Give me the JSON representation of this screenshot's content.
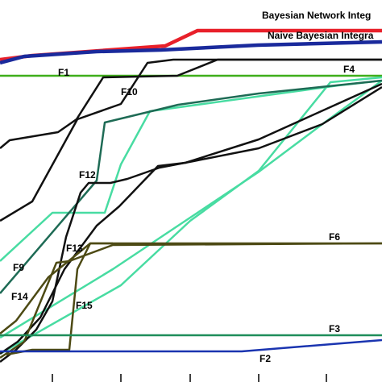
{
  "chart_data": {
    "type": "line",
    "title": "",
    "xlabel": "",
    "ylabel": "",
    "xlim": [
      0,
      474
    ],
    "ylim": [
      0,
      474
    ],
    "grid": false,
    "legend": "inline-labels",
    "x_ticks": [
      65,
      150,
      236,
      321,
      405
    ],
    "series": [
      {
        "name": "Bayesian Network Integ",
        "color": "#e8202a",
        "width": 4.5,
        "label_at": [
          325,
          451
        ],
        "points": [
          [
            0,
            400
          ],
          [
            40,
            405
          ],
          [
            205,
            417
          ],
          [
            245,
            436
          ],
          [
            474,
            436
          ]
        ]
      },
      {
        "name": "Naive Bayesian Integra",
        "color": "#1a2a9c",
        "width": 4.5,
        "label_at": [
          332,
          426
        ],
        "points": [
          [
            0,
            396
          ],
          [
            30,
            404
          ],
          [
            120,
            410
          ],
          [
            200,
            412
          ],
          [
            320,
            418
          ],
          [
            474,
            422
          ]
        ]
      },
      {
        "name": "F1",
        "color": "#3fae1a",
        "width": 2.5,
        "label_at": [
          72,
          380
        ],
        "points": [
          [
            0,
            380
          ],
          [
            474,
            380
          ]
        ]
      },
      {
        "name": "F4",
        "color": "#48dca2",
        "width": 2.5,
        "label_at": [
          426,
          384
        ],
        "points": [
          [
            0,
            150
          ],
          [
            65,
            210
          ],
          [
            130,
            210
          ],
          [
            150,
            270
          ],
          [
            186,
            336
          ],
          [
            420,
            368
          ],
          [
            474,
            374
          ]
        ]
      },
      {
        "name": "",
        "color": "#48dca2",
        "width": 2.5,
        "label_at": null,
        "points": [
          [
            0,
            35
          ],
          [
            150,
            120
          ],
          [
            236,
            200
          ],
          [
            321,
            262
          ],
          [
            410,
            372
          ],
          [
            474,
            378
          ]
        ]
      },
      {
        "name": "",
        "color": "#48dca2",
        "width": 2.5,
        "label_at": null,
        "points": [
          [
            0,
            55
          ],
          [
            140,
            140
          ],
          [
            230,
            200
          ],
          [
            320,
            260
          ],
          [
            400,
            320
          ],
          [
            474,
            374
          ]
        ]
      },
      {
        "name": "",
        "color": "#1e6b55",
        "width": 2.5,
        "label_at": null,
        "points": [
          [
            0,
            110
          ],
          [
            120,
            250
          ],
          [
            130,
            322
          ],
          [
            221,
            344
          ],
          [
            321,
            358
          ],
          [
            474,
            374
          ]
        ]
      },
      {
        "name": "F10",
        "color": "#111111",
        "width": 2.5,
        "label_at": [
          150,
          356
        ],
        "points": [
          [
            0,
            290
          ],
          [
            12,
            300
          ],
          [
            72,
            310
          ],
          [
            95,
            326
          ],
          [
            128,
            378
          ],
          [
            220,
            380
          ],
          [
            270,
            400
          ],
          [
            321,
            400
          ],
          [
            474,
            400
          ]
        ]
      },
      {
        "name": "",
        "color": "#111111",
        "width": 2.5,
        "label_at": null,
        "points": [
          [
            0,
            200
          ],
          [
            40,
            224
          ],
          [
            96,
            326
          ],
          [
            150,
            345
          ],
          [
            183,
            396
          ],
          [
            215,
            400
          ],
          [
            321,
            400
          ],
          [
            474,
            400
          ]
        ]
      },
      {
        "name": "F12",
        "color": "#111111",
        "width": 2.5,
        "label_at": [
          98,
          253
        ],
        "points": [
          [
            0,
            25
          ],
          [
            20,
            40
          ],
          [
            45,
            65
          ],
          [
            65,
            100
          ],
          [
            82,
            180
          ],
          [
            100,
            235
          ],
          [
            110,
            247
          ],
          [
            137,
            247
          ],
          [
            158,
            252
          ],
          [
            198,
            266
          ],
          [
            240,
            274
          ],
          [
            321,
            290
          ],
          [
            400,
            320
          ],
          [
            474,
            366
          ]
        ]
      },
      {
        "name": "",
        "color": "#111111",
        "width": 2.5,
        "label_at": null,
        "points": [
          [
            0,
            35
          ],
          [
            22,
            50
          ],
          [
            50,
            80
          ],
          [
            80,
            140
          ],
          [
            120,
            194
          ],
          [
            148,
            218
          ],
          [
            196,
            268
          ],
          [
            230,
            272
          ],
          [
            321,
            301
          ],
          [
            474,
            370
          ]
        ]
      },
      {
        "name": "F6",
        "color": "#4d4a14",
        "width": 2.5,
        "label_at": [
          408,
          176
        ],
        "points": [
          [
            0,
            60
          ],
          [
            20,
            76
          ],
          [
            60,
            130
          ],
          [
            85,
            150
          ],
          [
            112,
            172
          ],
          [
            474,
            172
          ]
        ]
      },
      {
        "name": "F13",
        "color": "#4d4a14",
        "width": 2.5,
        "label_at": [
          82,
          162
        ],
        "points": [
          [
            0,
            30
          ],
          [
            30,
            50
          ],
          [
            70,
            148
          ],
          [
            86,
            150
          ],
          [
            140,
            170
          ],
          [
            474,
            172
          ]
        ]
      },
      {
        "name": "F15",
        "color": "#4d4a14",
        "width": 2.5,
        "label_at": [
          94,
          91
        ],
        "points": [
          [
            8,
            34
          ],
          [
            40,
            40
          ],
          [
            86,
            40
          ],
          [
            96,
            140
          ],
          [
            112,
            172
          ],
          [
            140,
            172
          ]
        ]
      },
      {
        "name": "F9",
        "color": "#4d4a14",
        "width": 2.5,
        "label_at": [
          16,
          138
        ],
        "points": []
      },
      {
        "name": "F14",
        "color": "#4d4a14",
        "width": 2.5,
        "label_at": [
          14,
          102
        ],
        "points": []
      },
      {
        "name": "F3",
        "color": "#1e8e5a",
        "width": 2.5,
        "label_at": [
          408,
          62
        ],
        "points": [
          [
            0,
            58
          ],
          [
            474,
            58
          ]
        ]
      },
      {
        "name": "F2",
        "color": "#1a34b0",
        "width": 2.5,
        "label_at": [
          322,
          25
        ],
        "points": [
          [
            0,
            38
          ],
          [
            300,
            38
          ],
          [
            474,
            52
          ]
        ]
      }
    ]
  }
}
